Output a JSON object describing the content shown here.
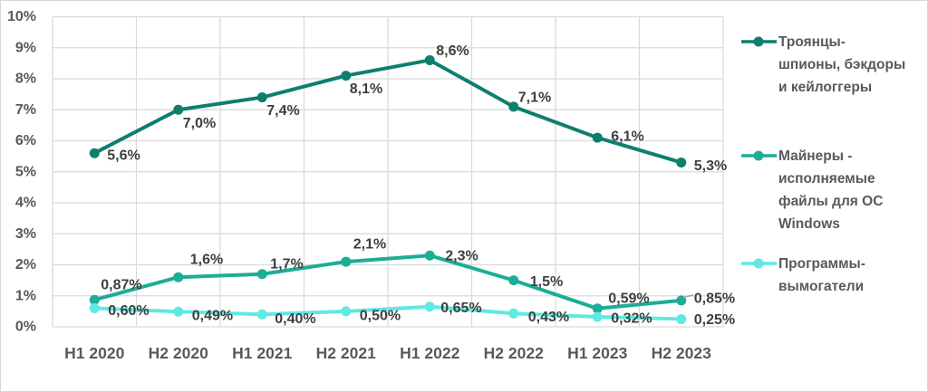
{
  "chart_data": {
    "type": "line",
    "title": "",
    "xlabel": "",
    "ylabel": "",
    "categories": [
      "H1 2020",
      "H2 2020",
      "H1 2021",
      "H2 2021",
      "H1 2022",
      "H2 2022",
      "H1 2023",
      "H2 2023"
    ],
    "series": [
      {
        "name": "Троянцы-\nшпионы, бэкдоры\nи кейлоггеры",
        "color": "#0e7f6e",
        "values": [
          5.6,
          7.0,
          7.4,
          8.1,
          8.6,
          7.1,
          6.1,
          5.3
        ],
        "labels": [
          "5,6%",
          "7,0%",
          "7,4%",
          "8,1%",
          "8,6%",
          "7,1%",
          "6,1%",
          "5,3%"
        ]
      },
      {
        "name": "Майнеры -\nисполняемые\nфайлы для ОС\nWindows",
        "color": "#1cad96",
        "values": [
          0.87,
          1.6,
          1.7,
          2.1,
          2.3,
          1.5,
          0.59,
          0.85
        ],
        "labels": [
          "0,87%",
          "1,6%",
          "1,7%",
          "2,1%",
          "2,3%",
          "1,5%",
          "0,59%",
          "0,85%"
        ]
      },
      {
        "name": "Программы-\nвымогатели",
        "color": "#5fe9e2",
        "values": [
          0.6,
          0.49,
          0.4,
          0.5,
          0.65,
          0.43,
          0.32,
          0.25
        ],
        "labels": [
          "0,60%",
          "0,49%",
          "0,40%",
          "0,50%",
          "0,65%",
          "0,43%",
          "0,32%",
          "0,25%"
        ]
      }
    ],
    "ylim": [
      0,
      10
    ],
    "ytick_labels": [
      "0%",
      "1%",
      "2%",
      "3%",
      "4%",
      "5%",
      "6%",
      "7%",
      "8%",
      "9%",
      "10%"
    ],
    "grid": true,
    "legend_position": "right"
  },
  "theme": {
    "grid_color": "#d9d9d9",
    "axis_text_color": "#595959",
    "data_label_color": "#3f3f3f",
    "leader_line_color": "#a6a6a6",
    "background": "#ffffff",
    "frame_border_color": "#d6d6d6"
  }
}
